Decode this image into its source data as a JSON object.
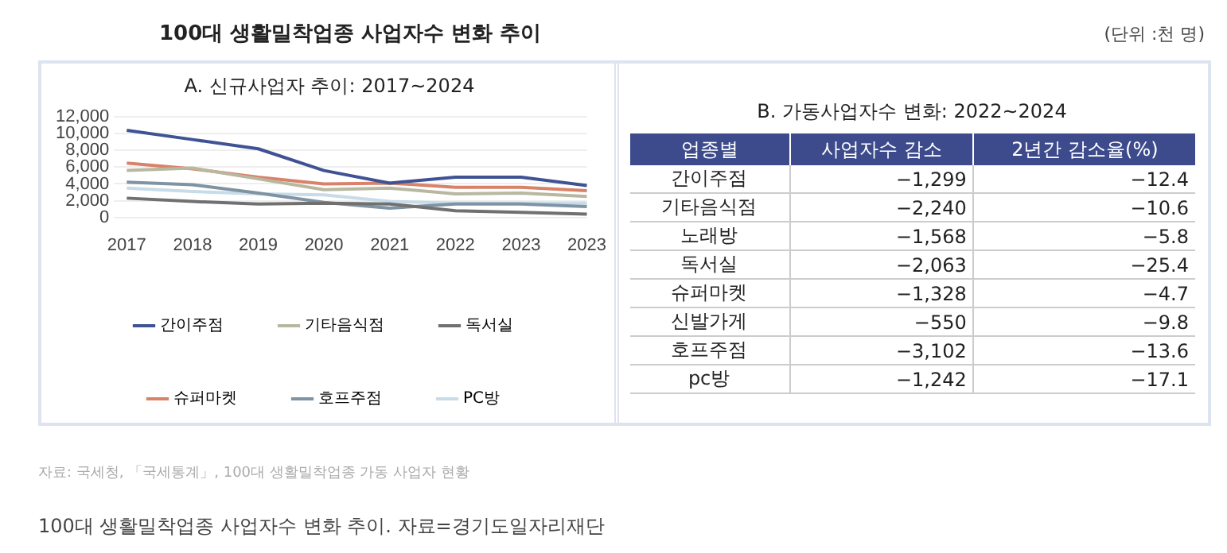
{
  "chart_data": [
    {
      "type": "line",
      "title": "100대 생활밀착업종 사업자수 변화 추이",
      "subtitle": "A. 신규사업자 추이: 2017~2024",
      "categories": [
        "2017",
        "2018",
        "2019",
        "2020",
        "2021",
        "2022",
        "2023",
        "2023"
      ],
      "series": [
        {
          "name": "간이주점",
          "color": "#3f5394",
          "values": [
            10400,
            9300,
            8200,
            5600,
            4100,
            4800,
            4800,
            3800
          ]
        },
        {
          "name": "기타음식점",
          "color": "#b8b8a0",
          "values": [
            5600,
            5900,
            4600,
            3300,
            3500,
            2800,
            2900,
            2500
          ]
        },
        {
          "name": "독서실",
          "color": "#707070",
          "values": [
            2300,
            1900,
            1600,
            1700,
            1600,
            800,
            600,
            400
          ]
        },
        {
          "name": "슈퍼마켓",
          "color": "#d9826a",
          "values": [
            6500,
            5800,
            4800,
            4000,
            4100,
            3600,
            3600,
            3200
          ]
        },
        {
          "name": "호프주점",
          "color": "#7f93a3",
          "values": [
            4200,
            3900,
            2900,
            1800,
            1100,
            1600,
            1600,
            1300
          ]
        },
        {
          "name": "PC방",
          "color": "#c8dbe8",
          "values": [
            3500,
            3100,
            2800,
            2700,
            1900,
            1700,
            1700,
            1700
          ]
        }
      ],
      "ylim": [
        0,
        12000
      ],
      "yticks": [
        0,
        {
          "value": 2000,
          "label": "2,000"
        },
        {
          "value": 4000,
          "label": "4,000"
        },
        {
          "value": 6000,
          "label": "6,000"
        },
        {
          "value": 8000,
          "label": "8,000"
        },
        {
          "value": 10000,
          "label": "10,000"
        },
        {
          "value": 12000,
          "label": "12,000"
        }
      ],
      "grid": "y",
      "legend": "bottom",
      "marker": "none",
      "line_style": "solid",
      "annotations": [
        "자료: 국세청, 「국세통계」, 100대 생활밀착업종 가동 사업자 현황",
        "100대 생활밀착업종 사업자수 변화 추이. 자료=경기도일자리재단"
      ]
    },
    {
      "type": "other",
      "title": "B. 가동사업자수 변화: 2022~2024",
      "xlabel": "업종별",
      "categories": [
        "간이주점",
        "기타음식점",
        "노래방",
        "독서실",
        "슈퍼마켓",
        "신발가게",
        "호프주점",
        "pc방"
      ],
      "series": [
        {
          "name": "사업자수 감소",
          "values": [
            -1299,
            -2240,
            -1568,
            -2063,
            -1328,
            -550,
            -3102,
            -1242
          ],
          "value_labels": [
            "−1,299",
            "−2,240",
            "−1,568",
            "−2,063",
            "−1,328",
            "−550",
            "−3,102",
            "−1,242"
          ]
        },
        {
          "name": "2년간 감소율(%)",
          "values": [
            -12.4,
            -10.6,
            -5.8,
            -25.4,
            -4.7,
            -9.8,
            -13.6,
            -17.1
          ],
          "value_labels": [
            "−12.4",
            "−10.6",
            "−5.8",
            "−25.4",
            "−4.7",
            "−9.8",
            "−13.6",
            "−17.1"
          ]
        }
      ],
      "annotations": [
        "(단위 :천 명)"
      ]
    }
  ]
}
